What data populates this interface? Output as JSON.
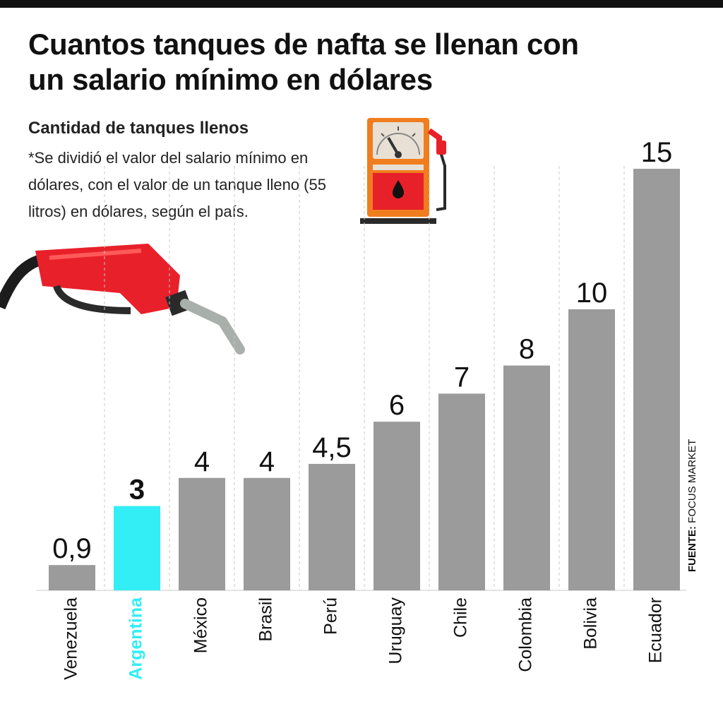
{
  "header": {
    "title": "Cuantos tanques de nafta se llenan con un salario mínimo en dólares",
    "subtitle": "Cantidad de tanques llenos",
    "note": "*Se dividió el valor del salario mínimo en dólares, con el valor de un tanque lleno (55 litros) en dólares, según el país."
  },
  "source": {
    "label": "FUENTE:",
    "value": "FOCUS MARKET"
  },
  "colors": {
    "bar": "#9b9b9b",
    "highlight": "#33eef5",
    "gridline": "#c8c8c8",
    "text": "#111111"
  },
  "icons": [
    "fuel-pump-icon",
    "fuel-nozzle-icon"
  ],
  "chart_data": {
    "type": "bar",
    "title": "Cuantos tanques de nafta se llenan con un salario mínimo en dólares",
    "subtitle": "Cantidad de tanques llenos",
    "categories": [
      "Venezuela",
      "Argentina",
      "México",
      "Brasil",
      "Perú",
      "Uruguay",
      "Chile",
      "Colombia",
      "Bolivia",
      "Ecuador"
    ],
    "values": [
      0.9,
      3,
      4,
      4,
      4.5,
      6,
      7,
      8,
      10,
      15
    ],
    "value_labels": [
      "0,9",
      "3",
      "4",
      "4",
      "4,5",
      "6",
      "7",
      "8",
      "10",
      "15"
    ],
    "highlight": "Argentina",
    "ylim": [
      0,
      15
    ],
    "grid": "vertical dashed separators",
    "legend": "none",
    "xlabel": "",
    "ylabel": ""
  }
}
